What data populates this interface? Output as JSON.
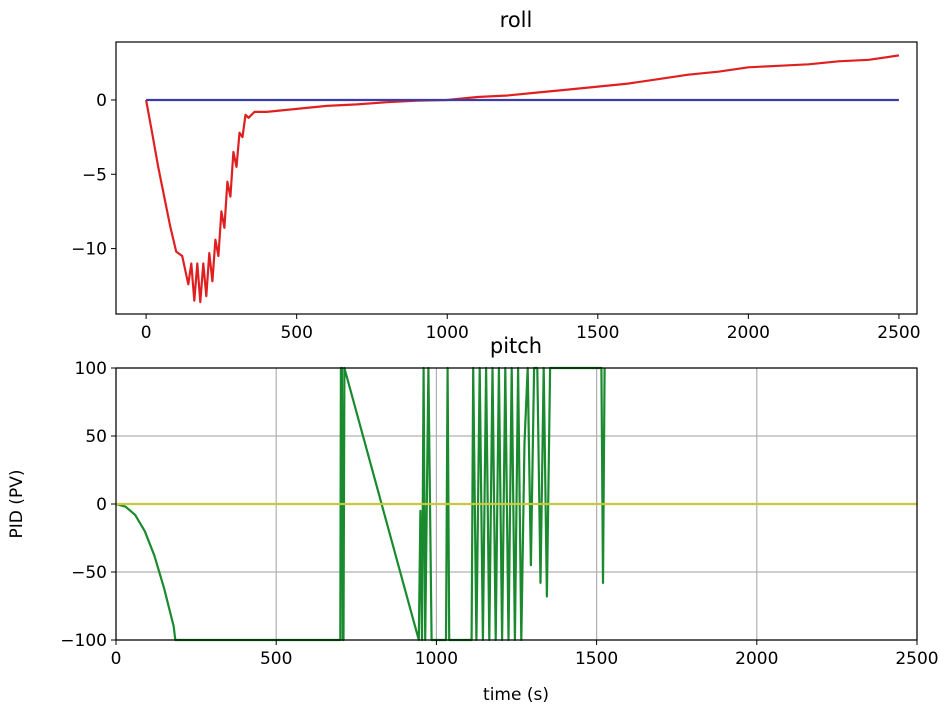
{
  "chart_data": [
    {
      "type": "line",
      "title": "roll",
      "xlabel": "",
      "ylabel": "",
      "xlim": [
        -100,
        2560
      ],
      "ylim": [
        -14.4,
        3.9
      ],
      "xticks": [
        0,
        500,
        1000,
        1500,
        2000,
        2500
      ],
      "xtick_labels": [
        "0",
        "500",
        "1000",
        "1500",
        "2000",
        "2500"
      ],
      "yticks": [
        0,
        -5,
        -10
      ],
      "ytick_labels": [
        "0",
        "−5",
        "−10"
      ],
      "grid": false,
      "series": [
        {
          "color": "#e02020",
          "x": [
            0,
            20,
            40,
            60,
            80,
            100,
            120,
            140,
            150,
            160,
            170,
            180,
            190,
            200,
            210,
            220,
            230,
            240,
            250,
            260,
            270,
            280,
            290,
            300,
            310,
            320,
            330,
            340,
            360,
            400,
            500,
            600,
            700,
            800,
            900,
            1000,
            1100,
            1200,
            1300,
            1400,
            1500,
            1600,
            1700,
            1800,
            1900,
            2000,
            2100,
            2200,
            2300,
            2400,
            2500
          ],
          "y": [
            0,
            -2.2,
            -4.5,
            -6.5,
            -8.5,
            -10.2,
            -10.5,
            -12.4,
            -11,
            -13.5,
            -11,
            -13.6,
            -11,
            -13.2,
            -10.3,
            -12.2,
            -9.4,
            -10.5,
            -7.5,
            -8.6,
            -5.5,
            -6.5,
            -3.5,
            -4.5,
            -2.2,
            -2.5,
            -1.0,
            -1.2,
            -0.8,
            -0.8,
            -0.6,
            -0.4,
            -0.3,
            -0.15,
            -0.05,
            0,
            0.2,
            0.3,
            0.5,
            0.7,
            0.9,
            1.1,
            1.4,
            1.7,
            1.9,
            2.2,
            2.3,
            2.4,
            2.6,
            2.7,
            3.0
          ]
        },
        {
          "color": "#3c3ca8",
          "x": [
            0,
            2500
          ],
          "y": [
            0,
            0
          ]
        }
      ]
    },
    {
      "type": "line",
      "title": "pitch",
      "xlabel": "time (s)",
      "ylabel": "PID (PV)",
      "xlim": [
        0,
        2500
      ],
      "ylim": [
        -100,
        100
      ],
      "xticks": [
        0,
        500,
        1000,
        1500,
        2000,
        2500
      ],
      "xtick_labels": [
        "0",
        "500",
        "1000",
        "1500",
        "2000",
        "2500"
      ],
      "yticks": [
        100,
        50,
        0,
        -50,
        -100
      ],
      "ytick_labels": [
        "100",
        "50",
        "0",
        "−50",
        "−100"
      ],
      "grid": true,
      "series": [
        {
          "color": "#1a8a2e",
          "x": [
            0,
            30,
            60,
            90,
            120,
            150,
            180,
            185,
            700,
            702,
            705,
            708,
            710,
            713,
            945,
            950,
            955,
            960,
            965,
            975,
            985,
            1030,
            1035,
            1040,
            1110,
            1115,
            1125,
            1135,
            1145,
            1155,
            1165,
            1175,
            1185,
            1195,
            1205,
            1215,
            1225,
            1235,
            1245,
            1255,
            1265,
            1275,
            1285,
            1295,
            1305,
            1315,
            1325,
            1335,
            1345,
            1355,
            1515,
            1520,
            1525
          ],
          "y": [
            0,
            -2,
            -8,
            -20,
            -38,
            -62,
            -90,
            -100,
            -100,
            100,
            100,
            -100,
            -100,
            100,
            -100,
            -5,
            -100,
            100,
            -100,
            100,
            -100,
            -100,
            100,
            -100,
            -100,
            100,
            -100,
            100,
            -100,
            100,
            -100,
            100,
            -100,
            100,
            -100,
            100,
            -100,
            100,
            -100,
            100,
            -100,
            45,
            100,
            -45,
            100,
            100,
            -58,
            100,
            -68,
            100,
            100,
            -58,
            100
          ]
        },
        {
          "color": "#c8c83c",
          "x": [
            0,
            2500
          ],
          "y": [
            0,
            0
          ]
        }
      ]
    }
  ]
}
